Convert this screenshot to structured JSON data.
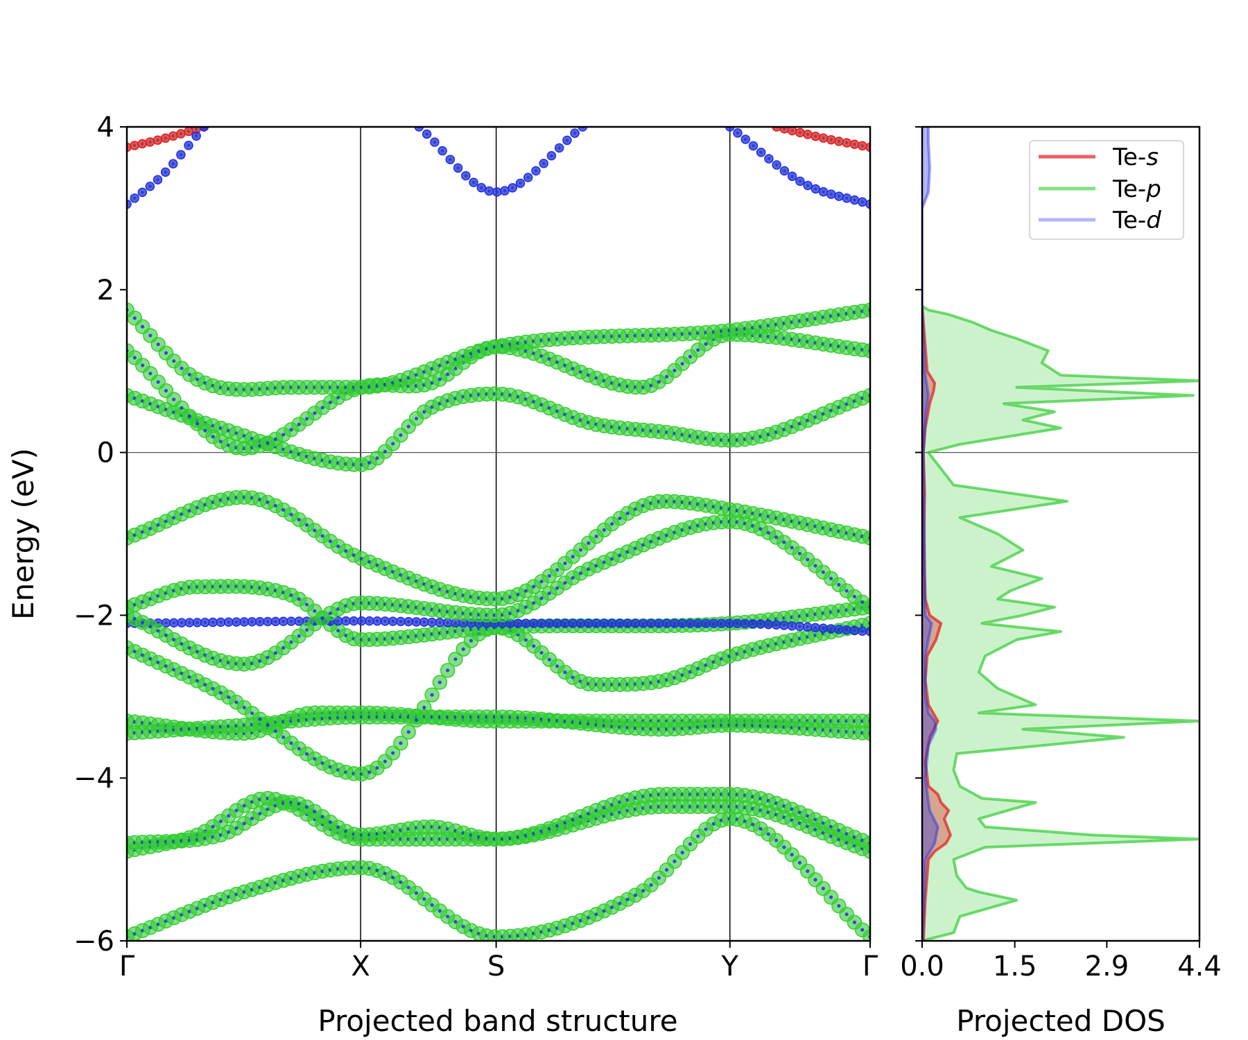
{
  "chart_data": [
    {
      "type": "line",
      "title": "",
      "xlabel": "Projected band structure",
      "ylabel": "Energy (eV)",
      "ylim": [
        -6,
        4
      ],
      "yticks": [
        -6,
        -4,
        -2,
        0,
        2,
        4
      ],
      "ytick_labels": [
        "−6",
        "−4",
        "−2",
        "0",
        "2",
        "4"
      ],
      "kpath_positions": [
        0,
        1,
        1.58,
        2.58,
        3.18
      ],
      "kpath_labels": [
        "Γ",
        "X",
        "S",
        "Y",
        "Γ"
      ],
      "fermi_level": 0,
      "colors": {
        "s": "#e41a1c",
        "p": "#33cc33",
        "d": "#1f2fe6"
      },
      "bands": [
        {
          "name": "band-1",
          "x": [
            0,
            0.5,
            1,
            1.58,
            2.2,
            2.58,
            3.18
          ],
          "y": [
            -5.95,
            -5.4,
            -5.1,
            -5.95,
            -5.4,
            -4.5,
            -5.95
          ],
          "weight": "p"
        },
        {
          "name": "band-2",
          "x": [
            0,
            0.3,
            0.6,
            1,
            1.58,
            2.3,
            2.58,
            3.18
          ],
          "y": [
            -4.9,
            -4.7,
            -4.25,
            -4.75,
            -4.75,
            -4.35,
            -4.35,
            -4.9
          ],
          "weight": "p"
        },
        {
          "name": "band-3",
          "x": [
            0,
            0.4,
            0.7,
            1,
            1.3,
            1.58,
            2.3,
            2.58,
            3.18
          ],
          "y": [
            -4.8,
            -4.7,
            -4.3,
            -4.7,
            -4.6,
            -4.75,
            -4.2,
            -4.2,
            -4.8
          ],
          "weight": "p"
        },
        {
          "name": "band-4",
          "x": [
            0,
            0.5,
            0.8,
            1,
            1.58,
            2.58,
            3.18
          ],
          "y": [
            -3.3,
            -3.45,
            -3.2,
            -3.2,
            -3.3,
            -3.3,
            -3.3
          ],
          "weight": "p"
        },
        {
          "name": "band-5",
          "x": [
            0,
            0.5,
            1,
            1.58,
            2.3,
            2.58,
            3.18
          ],
          "y": [
            -3.45,
            -3.35,
            -3.25,
            -3.25,
            -3.4,
            -3.35,
            -3.45
          ],
          "weight": "p"
        },
        {
          "name": "band-6",
          "x": [
            0,
            0.4,
            1,
            1.58,
            2.0,
            2.3,
            2.58,
            3.18
          ],
          "y": [
            -2.4,
            -2.95,
            -3.95,
            -2.15,
            -2.85,
            -2.8,
            -2.5,
            -2.1
          ],
          "weight": "p"
        },
        {
          "name": "band-7",
          "x": [
            0,
            0.3,
            0.7,
            1,
            1.58,
            2.58,
            3.18
          ],
          "y": [
            -1.9,
            -1.65,
            -1.75,
            -2.3,
            -2.15,
            -2.1,
            -1.9
          ],
          "weight": "p"
        },
        {
          "name": "band-8",
          "x": [
            0,
            1,
            1.58,
            2.58,
            3.18
          ],
          "y": [
            -2.1,
            -2.07,
            -2.1,
            -2.1,
            -2.2
          ],
          "weight": "d"
        },
        {
          "name": "band-9",
          "x": [
            0,
            0.5,
            1,
            1.58,
            2.3,
            2.58,
            3.18
          ],
          "y": [
            -1.05,
            -0.55,
            -1.3,
            -1.8,
            -0.6,
            -0.7,
            -1.05
          ],
          "weight": "p"
        },
        {
          "name": "band-10",
          "x": [
            0,
            0.5,
            1,
            1.58,
            2.0,
            2.58,
            3.18
          ],
          "y": [
            -2.0,
            -2.6,
            -1.85,
            -2.0,
            -1.4,
            -0.85,
            -1.9
          ],
          "weight": "p"
        },
        {
          "name": "band-11",
          "x": [
            0,
            0.4,
            1,
            1.3,
            1.58,
            2.0,
            2.3,
            2.58,
            3.18
          ],
          "y": [
            0.7,
            0.3,
            -0.15,
            0.55,
            0.72,
            0.35,
            0.25,
            0.15,
            0.7
          ],
          "weight": "p"
        },
        {
          "name": "band-12",
          "x": [
            0,
            0.5,
            1,
            1.3,
            1.58,
            2.2,
            2.58,
            3.18
          ],
          "y": [
            1.25,
            0.05,
            0.8,
            0.85,
            1.3,
            0.8,
            1.45,
            1.25
          ],
          "weight": "p"
        },
        {
          "name": "band-13",
          "x": [
            0,
            0.3,
            0.7,
            1,
            1.58,
            2.58,
            3.18
          ],
          "y": [
            1.75,
            0.9,
            0.8,
            0.8,
            1.3,
            1.5,
            1.75
          ],
          "weight": "p"
        },
        {
          "name": "band-14",
          "x": [
            0,
            0.15,
            0.33
          ],
          "y": [
            3.75,
            3.85,
            4.0
          ],
          "weight": "s"
        },
        {
          "name": "band-15",
          "x": [
            0,
            0.15,
            0.33
          ],
          "y": [
            3.05,
            3.4,
            4.0
          ],
          "weight": "d"
        },
        {
          "name": "band-16",
          "x": [
            1.25,
            1.58,
            1.95
          ],
          "y": [
            4.0,
            3.2,
            4.0
          ],
          "weight": "d"
        },
        {
          "name": "band-17",
          "x": [
            2.58,
            2.9,
            3.18
          ],
          "y": [
            4.0,
            3.3,
            3.05
          ],
          "weight": "d"
        },
        {
          "name": "band-18",
          "x": [
            2.78,
            3.0,
            3.18
          ],
          "y": [
            4.0,
            3.85,
            3.75
          ],
          "weight": "s"
        }
      ]
    },
    {
      "type": "area",
      "title": "",
      "xlabel": "Projected DOS",
      "ylabel": "",
      "xlim": [
        0,
        4.4
      ],
      "ylim": [
        -6,
        4
      ],
      "xticks": [
        0,
        1.47,
        2.93,
        4.4
      ],
      "xtick_labels": [
        "0.0",
        "1.5",
        "2.9",
        "4.4"
      ],
      "legend_position": "top-right",
      "series": [
        {
          "name": "Te-p",
          "label_prefix": "Te-",
          "label_orbital": "p",
          "color": "#33cc33",
          "energy": [
            -6.0,
            -5.9,
            -5.7,
            -5.5,
            -5.4,
            -5.35,
            -5.2,
            -5.0,
            -4.85,
            -4.75,
            -4.7,
            -4.6,
            -4.5,
            -4.3,
            -4.25,
            -4.1,
            -3.9,
            -3.7,
            -3.6,
            -3.5,
            -3.4,
            -3.3,
            -3.2,
            -3.1,
            -2.9,
            -2.7,
            -2.5,
            -2.3,
            -2.2,
            -2.1,
            -2.0,
            -1.9,
            -1.8,
            -1.7,
            -1.55,
            -1.4,
            -1.2,
            -1.0,
            -0.8,
            -0.6,
            -0.4,
            -0.2,
            -0.1,
            0.0,
            0.1,
            0.2,
            0.3,
            0.4,
            0.5,
            0.6,
            0.7,
            0.8,
            0.88,
            0.95,
            1.1,
            1.25,
            1.4,
            1.5,
            1.6,
            1.7,
            1.75,
            1.8
          ],
          "values": [
            0.0,
            0.5,
            0.6,
            1.5,
            0.9,
            0.7,
            0.55,
            0.5,
            1.0,
            4.4,
            2.7,
            1.0,
            0.9,
            1.8,
            0.95,
            0.6,
            0.5,
            0.55,
            1.9,
            3.2,
            1.6,
            4.4,
            0.9,
            1.8,
            1.2,
            0.9,
            1.0,
            1.5,
            2.2,
            0.95,
            1.6,
            2.1,
            1.2,
            1.4,
            1.9,
            1.1,
            1.6,
            1.2,
            0.6,
            2.3,
            0.5,
            0.3,
            0.2,
            0.1,
            0.6,
            1.4,
            2.2,
            1.6,
            2.1,
            1.3,
            4.3,
            1.5,
            4.4,
            2.2,
            1.9,
            2.0,
            1.5,
            1.1,
            0.8,
            0.4,
            0.1,
            0.0
          ]
        },
        {
          "name": "Te-s",
          "label_prefix": "Te-",
          "label_orbital": "s",
          "color": "#e41a1c",
          "energy": [
            -6.0,
            -5.5,
            -5.0,
            -4.9,
            -4.8,
            -4.7,
            -4.6,
            -4.5,
            -4.4,
            -4.3,
            -4.2,
            -4.1,
            -3.8,
            -3.5,
            -3.3,
            -3.1,
            -2.8,
            -2.5,
            -2.3,
            -2.1,
            -2.0,
            -1.8,
            -1.5,
            -1.0,
            -0.5,
            0.0,
            0.3,
            0.6,
            0.75,
            0.85,
            1.0,
            1.5,
            1.8
          ],
          "values": [
            0.02,
            0.05,
            0.1,
            0.2,
            0.38,
            0.45,
            0.4,
            0.35,
            0.42,
            0.3,
            0.25,
            0.1,
            0.05,
            0.12,
            0.25,
            0.1,
            0.05,
            0.08,
            0.22,
            0.3,
            0.12,
            0.05,
            0.04,
            0.03,
            0.04,
            0.02,
            0.05,
            0.12,
            0.18,
            0.2,
            0.08,
            0.03,
            0.0
          ]
        },
        {
          "name": "Te-d",
          "label_prefix": "Te-",
          "label_orbital": "d",
          "color": "#1f2fe6",
          "energy": [
            -6.0,
            -5.0,
            -4.8,
            -4.6,
            -4.4,
            -4.0,
            -3.6,
            -3.4,
            -3.3,
            -3.2,
            -3.0,
            -2.5,
            -2.1,
            -2.0,
            -1.5,
            -0.5,
            0.0,
            0.5,
            0.7,
            1.0,
            1.8,
            3.0,
            3.2,
            3.5,
            3.8,
            4.0
          ],
          "values": [
            0.01,
            0.05,
            0.2,
            0.25,
            0.12,
            0.05,
            0.1,
            0.22,
            0.2,
            0.1,
            0.05,
            0.05,
            0.15,
            0.05,
            0.04,
            0.03,
            0.02,
            0.06,
            0.1,
            0.04,
            0.0,
            0.0,
            0.1,
            0.12,
            0.1,
            0.1
          ]
        }
      ]
    }
  ]
}
